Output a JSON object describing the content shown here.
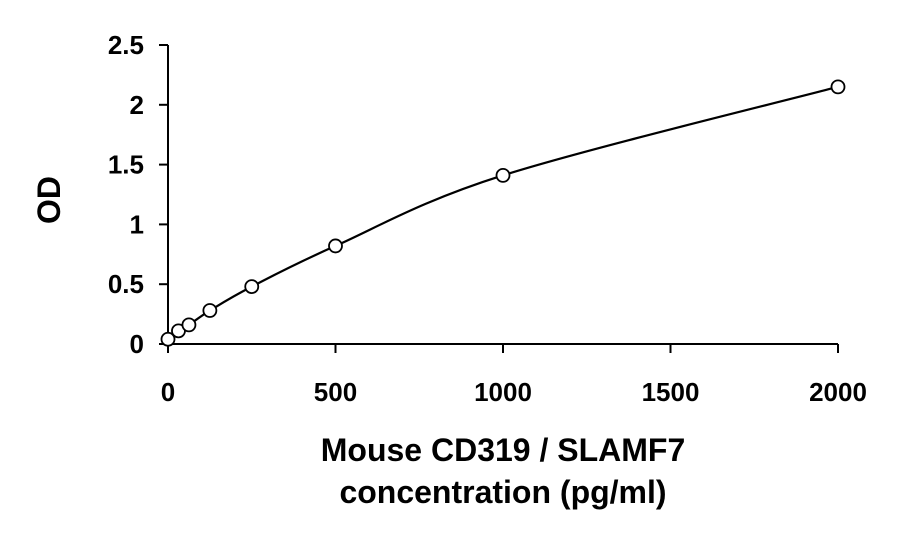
{
  "chart_data": {
    "type": "scatter",
    "title": "",
    "xlabel_lines": [
      "Mouse CD319 / SLAMF7",
      "concentration (pg/ml)"
    ],
    "ylabel": "OD",
    "xlim": [
      0,
      2000
    ],
    "ylim": [
      0,
      2.5
    ],
    "x_ticks": [
      0,
      500,
      1000,
      1500,
      2000
    ],
    "x_tick_labels": [
      "0",
      "500",
      "1000",
      "1500",
      "2000"
    ],
    "y_ticks": [
      0,
      0.5,
      1,
      1.5,
      2,
      2.5
    ],
    "y_tick_labels": [
      "0",
      "0.5",
      "1",
      "1.5",
      "2",
      "2.5"
    ],
    "grid": false,
    "legend": "none",
    "series": [
      {
        "marker": "open-circle",
        "trendline": "smooth curve",
        "x": [
          0,
          31.25,
          62.5,
          125,
          250,
          500,
          1000,
          2000
        ],
        "y": [
          0.04,
          0.11,
          0.16,
          0.28,
          0.48,
          0.82,
          1.41,
          2.15
        ]
      }
    ],
    "colors": {
      "axis": "#000000",
      "line": "#000000",
      "marker_stroke": "#000000",
      "marker_fill": "#ffffff"
    }
  }
}
